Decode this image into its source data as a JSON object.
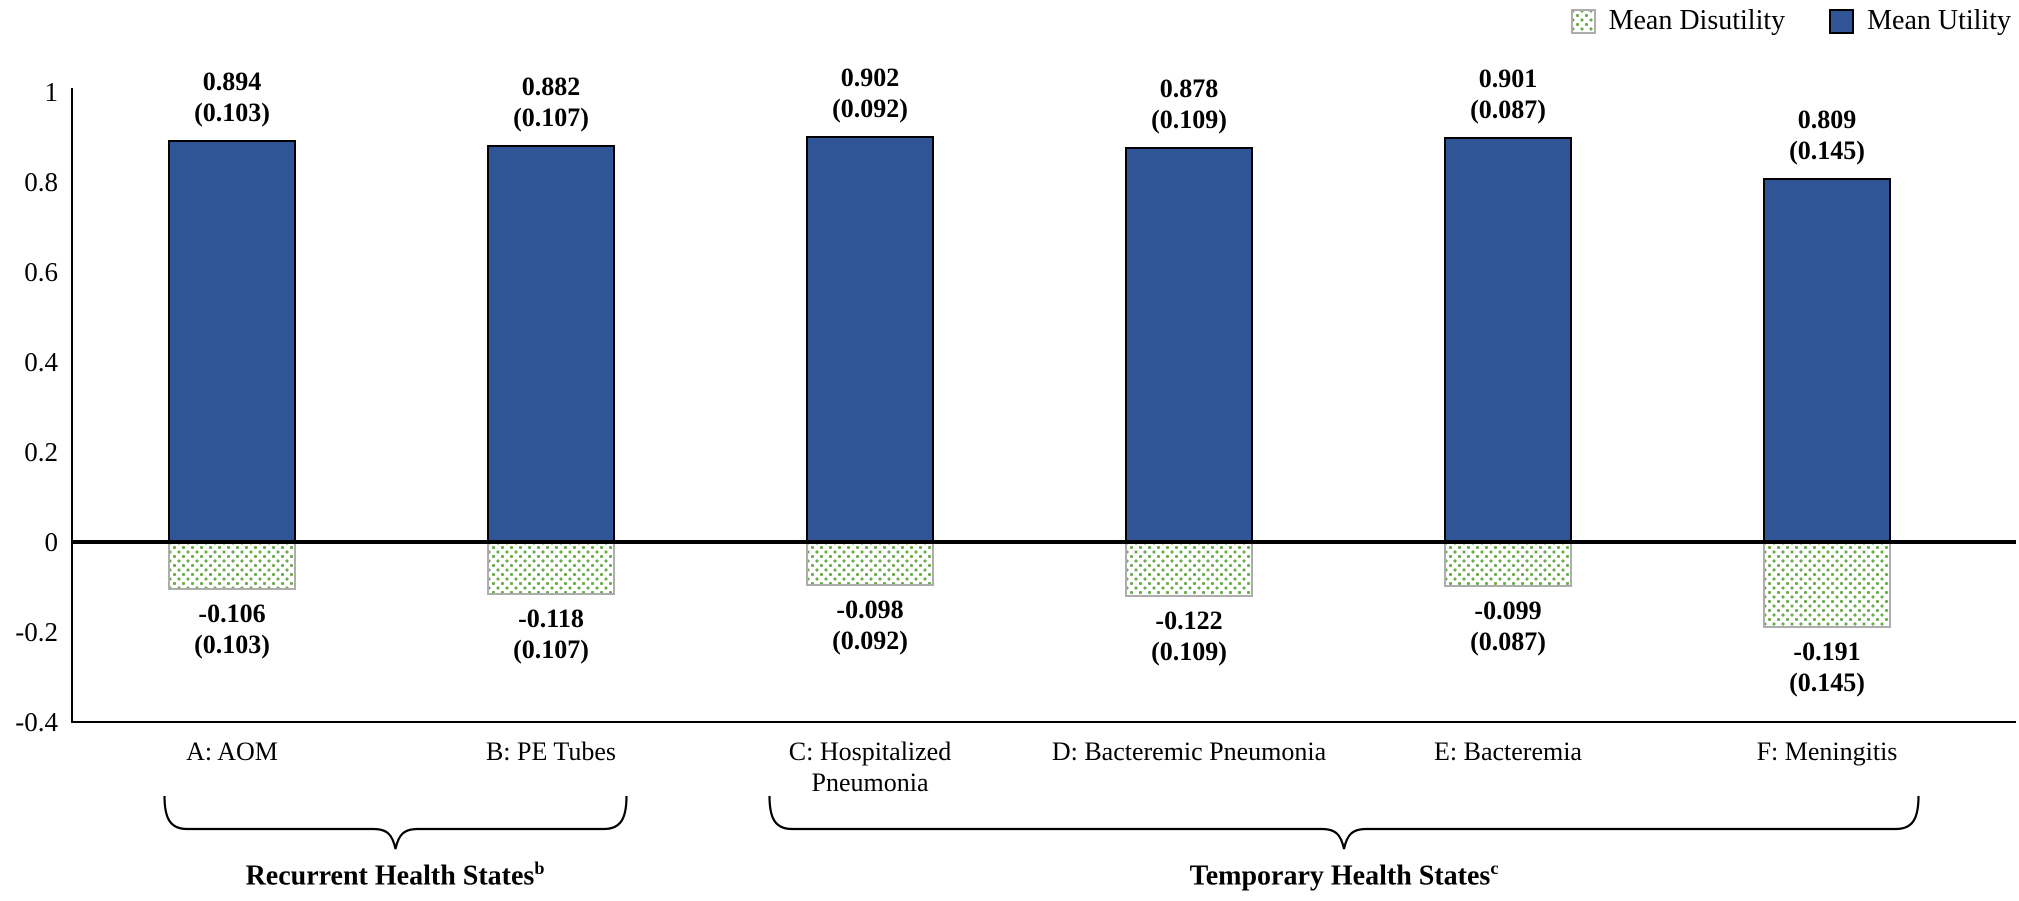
{
  "legend": {
    "items": [
      {
        "label": "Mean Disutility",
        "swatch": "dotted-green-pattern"
      },
      {
        "label": "Mean Utility",
        "swatch": "solid-blue"
      }
    ]
  },
  "colors": {
    "utility_fill": "#2F5597",
    "disutility_dot_green": "#6BAD4C",
    "disutility_border": "#ADADAD",
    "axis": "#000000"
  },
  "y_axis": {
    "tick_labels": [
      "1",
      "0.8",
      "0.6",
      "0.4",
      "0.2",
      "0",
      "-0.2",
      "-0.4"
    ],
    "tick_values": [
      1,
      0.8,
      0.6,
      0.4,
      0.2,
      0,
      -0.2,
      -0.4
    ]
  },
  "bars": [
    {
      "category": "A: AOM",
      "utility_label": "0.894",
      "utility_sd_label": "(0.103)",
      "disutility_label": "-0.106",
      "disutility_sd_label": "(0.103)"
    },
    {
      "category": "B: PE Tubes",
      "utility_label": "0.882",
      "utility_sd_label": "(0.107)",
      "disutility_label": "-0.118",
      "disutility_sd_label": "(0.107)"
    },
    {
      "category": "C: Hospitalized Pneumonia",
      "utility_label": "0.902",
      "utility_sd_label": "(0.092)",
      "disutility_label": "-0.098",
      "disutility_sd_label": "(0.092)"
    },
    {
      "category": "D: Bacteremic Pneumonia",
      "utility_label": "0.878",
      "utility_sd_label": "(0.109)",
      "disutility_label": "-0.122",
      "disutility_sd_label": "(0.109)"
    },
    {
      "category": "E: Bacteremia",
      "utility_label": "0.901",
      "utility_sd_label": "(0.087)",
      "disutility_label": "-0.099",
      "disutility_sd_label": "(0.087)"
    },
    {
      "category": "F: Meningitis",
      "utility_label": "0.809",
      "utility_sd_label": "(0.145)",
      "disutility_label": "-0.191",
      "disutility_sd_label": "(0.145)"
    }
  ],
  "groups": [
    {
      "label": "Recurrent Health States",
      "superscript": "b"
    },
    {
      "label": "Temporary Health States",
      "superscript": "c"
    }
  ],
  "chart_data": {
    "type": "bar",
    "categories": [
      "A: AOM",
      "B: PE Tubes",
      "C: Hospitalized Pneumonia",
      "D: Bacteremic Pneumonia",
      "E: Bacteremia",
      "F: Meningitis"
    ],
    "series": [
      {
        "name": "Mean Utility",
        "values": [
          0.894,
          0.882,
          0.902,
          0.878,
          0.901,
          0.809
        ],
        "sd": [
          0.103,
          0.107,
          0.092,
          0.109,
          0.087,
          0.145
        ]
      },
      {
        "name": "Mean Disutility",
        "values": [
          -0.106,
          -0.118,
          -0.098,
          -0.122,
          -0.099,
          -0.191
        ],
        "sd": [
          0.103,
          0.107,
          0.092,
          0.109,
          0.087,
          0.145
        ]
      }
    ],
    "title": "",
    "xlabel": "",
    "ylabel": "",
    "ylim": [
      -0.4,
      1
    ],
    "y_ticks": [
      1,
      0.8,
      0.6,
      0.4,
      0.2,
      0,
      -0.2,
      -0.4
    ],
    "grid": false,
    "legend_position": "top-right",
    "value_labels": "mean (sd) above utility bars and below disutility bars",
    "group_brackets": [
      {
        "label": "Recurrent Health States",
        "superscript": "b",
        "categories": [
          "A: AOM",
          "B: PE Tubes"
        ]
      },
      {
        "label": "Temporary Health States",
        "superscript": "c",
        "categories": [
          "C: Hospitalized Pneumonia",
          "D: Bacteremic Pneumonia",
          "E: Bacteremia",
          "F: Meningitis"
        ]
      }
    ]
  }
}
